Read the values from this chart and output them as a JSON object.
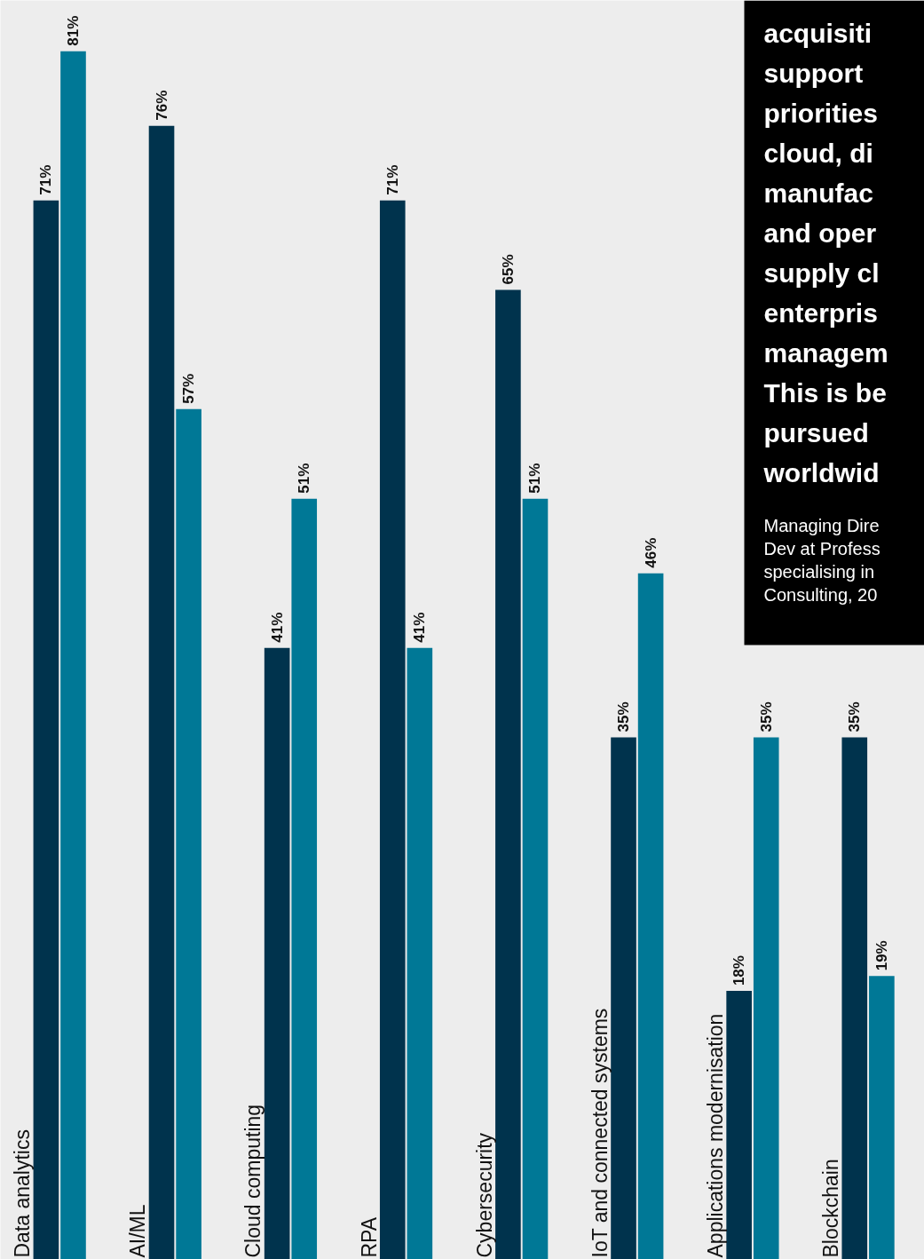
{
  "chart_data": {
    "type": "bar",
    "categories": [
      "Data analytics",
      "AI/ML",
      "Cloud computing",
      "RPA",
      "Cybersecurity",
      "IoT and connected systems",
      "Applications modernisation",
      "Blockchain"
    ],
    "series": [
      {
        "color": "#00334d",
        "values": [
          71,
          76,
          41,
          71,
          65,
          35,
          18,
          35
        ],
        "value_labels": [
          "71%",
          "76%",
          "41%",
          "71%",
          "65%",
          "35%",
          "18%",
          "35%"
        ]
      },
      {
        "color": "#007896",
        "values": [
          81,
          57,
          51,
          41,
          51,
          46,
          35,
          19
        ],
        "value_labels": [
          "81%",
          "57%",
          "51%",
          "41%",
          "51%",
          "46%",
          "35%",
          "19%"
        ]
      }
    ],
    "grid": false,
    "annotations": [
      "acquisiti\nsupport\npriorities\ncloud, di\nmanufac\nand oper\nsupply cl\nenterpris\nmanagem\nThis is be\npursued\nworldwid",
      "Managing Dire\nDev at Profess\nspecialising in\nConsulting, 20"
    ]
  }
}
